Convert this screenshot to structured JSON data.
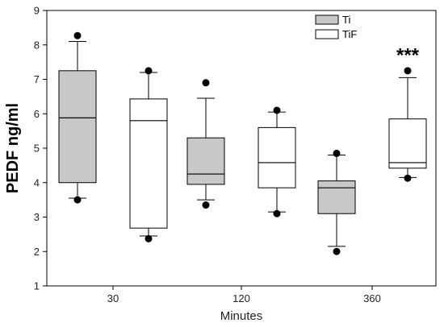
{
  "chart_data": {
    "type": "box",
    "ylabel": "PEDF ng/ml",
    "xlabel": "Minutes",
    "ylim": [
      1,
      9
    ],
    "yticks": [
      "1",
      "2",
      "3",
      "4",
      "5",
      "6",
      "7",
      "8",
      "9"
    ],
    "categories": [
      "30",
      "120",
      "360"
    ],
    "legend_position": "top-right",
    "series": [
      {
        "name": "Ti",
        "color": "#c8c8c8",
        "boxes": [
          {
            "category": "30",
            "whisker_low": 3.55,
            "q1": 4.0,
            "median": 5.88,
            "q3": 7.25,
            "whisker_high": 8.1,
            "outliers": [
              3.5,
              8.27
            ]
          },
          {
            "category": "120",
            "whisker_low": 3.5,
            "q1": 3.95,
            "median": 4.25,
            "q3": 5.3,
            "whisker_high": 6.45,
            "outliers": [
              3.35,
              6.9
            ]
          },
          {
            "category": "360",
            "whisker_low": 2.15,
            "q1": 3.1,
            "median": 3.85,
            "q3": 4.05,
            "whisker_high": 4.8,
            "outliers": [
              2.0,
              4.85
            ]
          }
        ]
      },
      {
        "name": "TiF",
        "color": "#ffffff",
        "boxes": [
          {
            "category": "30",
            "whisker_low": 2.45,
            "q1": 2.68,
            "median": 5.8,
            "q3": 6.43,
            "whisker_high": 7.2,
            "outliers": [
              2.37,
              7.25
            ]
          },
          {
            "category": "120",
            "whisker_low": 3.15,
            "q1": 3.85,
            "median": 4.58,
            "q3": 5.6,
            "whisker_high": 6.05,
            "outliers": [
              3.1,
              6.1
            ]
          },
          {
            "category": "360",
            "whisker_low": 4.15,
            "q1": 4.42,
            "median": 4.58,
            "q3": 5.85,
            "whisker_high": 7.05,
            "outliers": [
              4.13,
              7.25
            ]
          }
        ]
      }
    ],
    "annotations": [
      {
        "text": "***",
        "category": "360",
        "series": "TiF",
        "y": 7.8
      }
    ]
  }
}
